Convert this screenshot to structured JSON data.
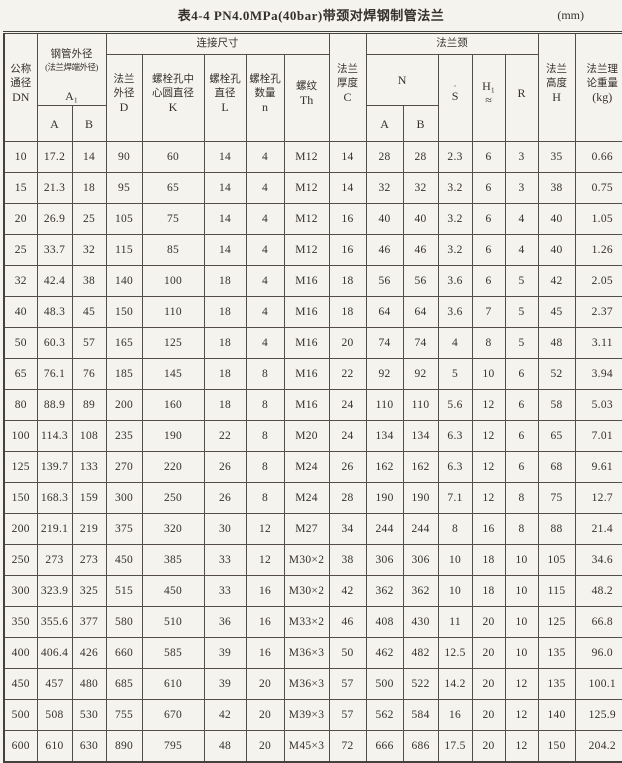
{
  "title": "表4-4  PN4.0MPa(40bar)带颈对焊钢制管法兰",
  "unit": "(mm)",
  "header": {
    "dn": {
      "label": "公称\n通径",
      "symbol": "DN"
    },
    "pipe_od": {
      "label": "钢管外径",
      "sub": "(法兰焊端外径)",
      "symbol": "A₁",
      "a": "A",
      "b": "B"
    },
    "conn": {
      "label": "连接尺寸",
      "cols": [
        {
          "label": "法兰\n外径",
          "symbol": "D"
        },
        {
          "label": "螺栓孔中\n心圆直径",
          "symbol": "K"
        },
        {
          "label": "螺栓孔\n直径",
          "symbol": "L"
        },
        {
          "label": "螺栓孔\n数量",
          "symbol": "n"
        },
        {
          "label": "螺纹",
          "symbol": "Th"
        }
      ]
    },
    "thickness": {
      "label": "法兰\n厚度",
      "symbol": "C"
    },
    "neck": {
      "label": "法兰颈",
      "n_label": "N",
      "n_a": "A",
      "n_b": "B",
      "s_mark": "·",
      "s": "S",
      "h1": "H₁",
      "h1_approx": "≈",
      "r": "R"
    },
    "height": {
      "label": "法兰\n高度",
      "symbol": "H"
    },
    "weight": {
      "label": "法兰理\n论重量",
      "symbol": "(kg)"
    }
  },
  "rows": [
    [
      "10",
      "17.2",
      "14",
      "90",
      "60",
      "14",
      "4",
      "M12",
      "14",
      "28",
      "28",
      "2.3",
      "6",
      "3",
      "35",
      "0.66"
    ],
    [
      "15",
      "21.3",
      "18",
      "95",
      "65",
      "14",
      "4",
      "M12",
      "14",
      "32",
      "32",
      "3.2",
      "6",
      "3",
      "38",
      "0.75"
    ],
    [
      "20",
      "26.9",
      "25",
      "105",
      "75",
      "14",
      "4",
      "M12",
      "16",
      "40",
      "40",
      "3.2",
      "6",
      "4",
      "40",
      "1.05"
    ],
    [
      "25",
      "33.7",
      "32",
      "115",
      "85",
      "14",
      "4",
      "M12",
      "16",
      "46",
      "46",
      "3.2",
      "6",
      "4",
      "40",
      "1.26"
    ],
    [
      "32",
      "42.4",
      "38",
      "140",
      "100",
      "18",
      "4",
      "M16",
      "18",
      "56",
      "56",
      "3.6",
      "6",
      "5",
      "42",
      "2.05"
    ],
    [
      "40",
      "48.3",
      "45",
      "150",
      "110",
      "18",
      "4",
      "M16",
      "18",
      "64",
      "64",
      "3.6",
      "7",
      "5",
      "45",
      "2.37"
    ],
    [
      "50",
      "60.3",
      "57",
      "165",
      "125",
      "18",
      "4",
      "M16",
      "20",
      "74",
      "74",
      "4",
      "8",
      "5",
      "48",
      "3.11"
    ],
    [
      "65",
      "76.1",
      "76",
      "185",
      "145",
      "18",
      "8",
      "M16",
      "22",
      "92",
      "92",
      "5",
      "10",
      "6",
      "52",
      "3.94"
    ],
    [
      "80",
      "88.9",
      "89",
      "200",
      "160",
      "18",
      "8",
      "M16",
      "24",
      "110",
      "110",
      "5.6",
      "12",
      "6",
      "58",
      "5.03"
    ],
    [
      "100",
      "114.3",
      "108",
      "235",
      "190",
      "22",
      "8",
      "M20",
      "24",
      "134",
      "134",
      "6.3",
      "12",
      "6",
      "65",
      "7.01"
    ],
    [
      "125",
      "139.7",
      "133",
      "270",
      "220",
      "26",
      "8",
      "M24",
      "26",
      "162",
      "162",
      "6.3",
      "12",
      "6",
      "68",
      "9.61"
    ],
    [
      "150",
      "168.3",
      "159",
      "300",
      "250",
      "26",
      "8",
      "M24",
      "28",
      "190",
      "190",
      "7.1",
      "12",
      "8",
      "75",
      "12.7"
    ],
    [
      "200",
      "219.1",
      "219",
      "375",
      "320",
      "30",
      "12",
      "M27",
      "34",
      "244",
      "244",
      "8",
      "16",
      "8",
      "88",
      "21.4"
    ],
    [
      "250",
      "273",
      "273",
      "450",
      "385",
      "33",
      "12",
      "M30×2",
      "38",
      "306",
      "306",
      "10",
      "18",
      "10",
      "105",
      "34.6"
    ],
    [
      "300",
      "323.9",
      "325",
      "515",
      "450",
      "33",
      "16",
      "M30×2",
      "42",
      "362",
      "362",
      "10",
      "18",
      "10",
      "115",
      "48.2"
    ],
    [
      "350",
      "355.6",
      "377",
      "580",
      "510",
      "36",
      "16",
      "M33×2",
      "46",
      "408",
      "430",
      "11",
      "20",
      "10",
      "125",
      "66.8"
    ],
    [
      "400",
      "406.4",
      "426",
      "660",
      "585",
      "39",
      "16",
      "M36×3",
      "50",
      "462",
      "482",
      "12.5",
      "20",
      "10",
      "135",
      "96.0"
    ],
    [
      "450",
      "457",
      "480",
      "685",
      "610",
      "39",
      "20",
      "M36×3",
      "57",
      "500",
      "522",
      "14.2",
      "20",
      "12",
      "135",
      "100.1"
    ],
    [
      "500",
      "508",
      "530",
      "755",
      "670",
      "42",
      "20",
      "M39×3",
      "57",
      "562",
      "584",
      "16",
      "20",
      "12",
      "140",
      "125.9"
    ],
    [
      "600",
      "610",
      "630",
      "890",
      "795",
      "48",
      "20",
      "M45×3",
      "72",
      "666",
      "686",
      "17.5",
      "20",
      "12",
      "150",
      "204.2"
    ]
  ]
}
